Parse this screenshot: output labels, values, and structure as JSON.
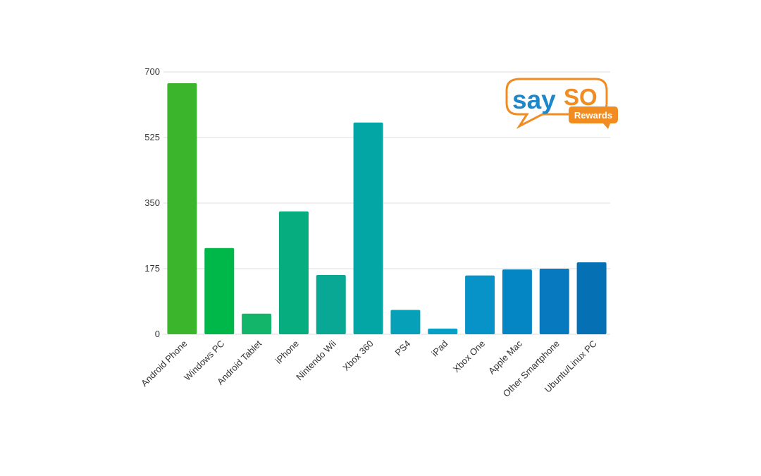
{
  "chart_data": {
    "type": "bar",
    "title": "",
    "xlabel": "",
    "ylabel": "",
    "ylim": [
      0,
      700
    ],
    "yticks": [
      "0",
      "175",
      "350",
      "525",
      "700"
    ],
    "grid": true,
    "categories": [
      "Android Phone",
      "Windows PC",
      "Android Tablet",
      "iPhone",
      "Nintendo Wii",
      "Xbox 360",
      "PS4",
      "iPad",
      "Xbox One",
      "Apple Mac",
      "Other Smartphone",
      "Ubuntu/Linux PC"
    ],
    "values": [
      670,
      230,
      55,
      328,
      158,
      565,
      65,
      15,
      157,
      173,
      175,
      192
    ],
    "colors": [
      "#3bb62c",
      "#00b84a",
      "#12b56a",
      "#06ad7e",
      "#08a895",
      "#03a5a5",
      "#06a0b8",
      "#06a0c6",
      "#0893c8",
      "#0486c4",
      "#0679bf",
      "#0670b5"
    ]
  },
  "logo": {
    "text_say": "say",
    "text_so": "SO",
    "text_rewards": "Rewards",
    "color_blue": "#1c87c9",
    "color_orange": "#f08c22"
  }
}
